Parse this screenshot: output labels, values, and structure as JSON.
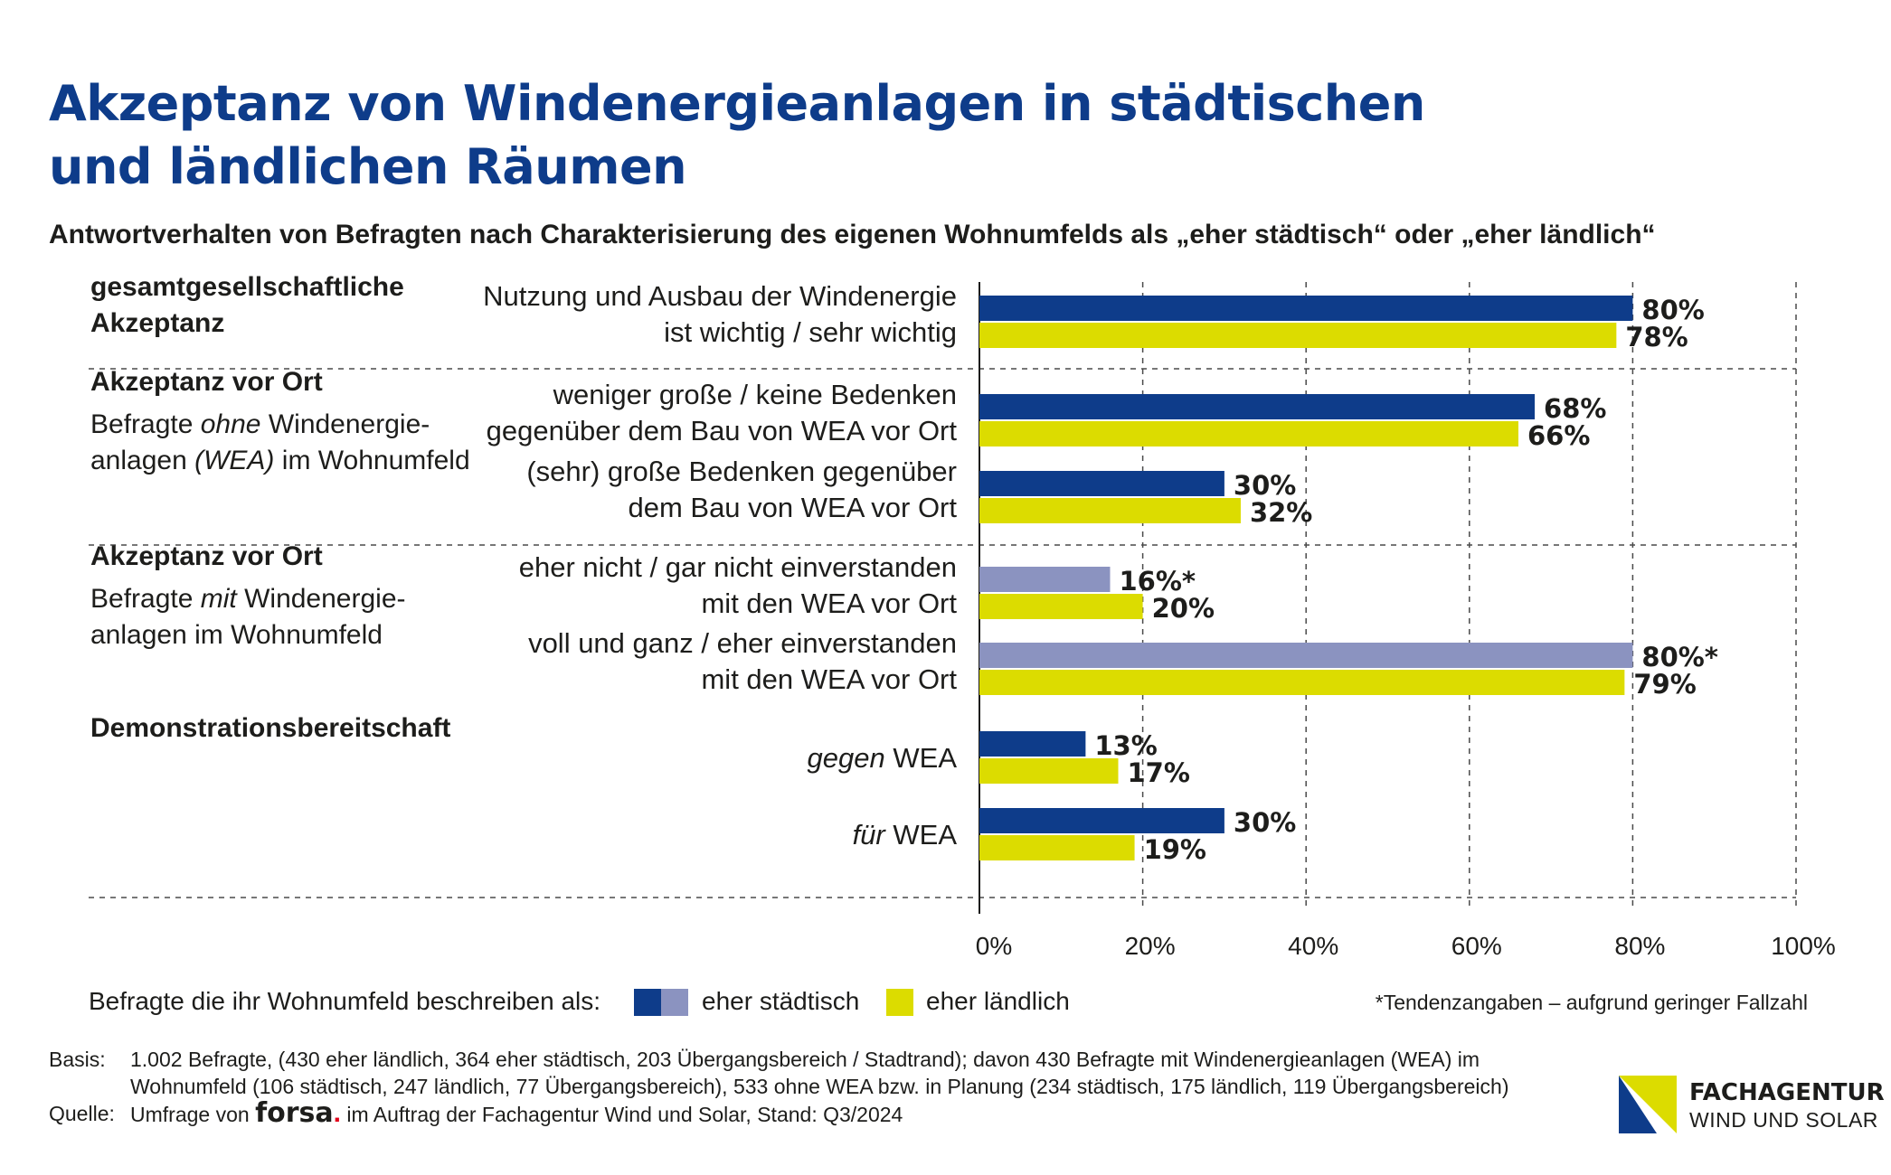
{
  "title": {
    "line1": "Akzeptanz von Windenergieanlagen in städtischen",
    "line2": "und ländlichen Räumen"
  },
  "subtitle": "Antwortverhalten von Befragten nach Charakterisierung des eigenen Wohnumfelds als „eher städtisch“ oder „eher ländlich“",
  "colors": {
    "staedtisch": "#0e3c8a",
    "staedtisch_tendenz": "#8b93c0",
    "laendlich": "#dcdc00",
    "title": "#0e3c8a"
  },
  "chart_data": {
    "type": "bar",
    "orientation": "horizontal",
    "xlim": [
      0,
      100
    ],
    "x_ticks": [
      "0%",
      "20%",
      "40%",
      "60%",
      "80%",
      "100%"
    ],
    "grid": true,
    "series_names": [
      "eher städtisch",
      "eher ländlich"
    ],
    "groups": [
      {
        "title": [
          "gesamtgesellschaftliche",
          "Akzeptanz"
        ],
        "description": [],
        "items": [
          {
            "label": [
              "Nutzung und Ausbau der Windenergie",
              "ist wichtig / sehr wichtig"
            ],
            "italic": false,
            "bars": [
              {
                "series": "eher städtisch",
                "value": 80,
                "label": "80%",
                "tendency": false
              },
              {
                "series": "eher ländlich",
                "value": 78,
                "label": "78%",
                "tendency": false
              }
            ]
          }
        ]
      },
      {
        "title": [
          "Akzeptanz vor Ort"
        ],
        "description": [
          [
            {
              "t": "Befragte "
            },
            {
              "t": "ohne",
              "i": true
            },
            {
              "t": " Windenergie-"
            }
          ],
          [
            {
              "t": "anlagen "
            },
            {
              "t": "(WEA)",
              "i": true
            },
            {
              "t": " im Wohnumfeld"
            }
          ]
        ],
        "items": [
          {
            "label": [
              "weniger große / keine Bedenken",
              "gegenüber dem Bau von WEA vor Ort"
            ],
            "italic": false,
            "bars": [
              {
                "series": "eher städtisch",
                "value": 68,
                "label": "68%",
                "tendency": false
              },
              {
                "series": "eher ländlich",
                "value": 66,
                "label": "66%",
                "tendency": false
              }
            ]
          },
          {
            "label": [
              "(sehr) große Bedenken gegenüber",
              "dem Bau von WEA vor Ort"
            ],
            "italic": false,
            "bars": [
              {
                "series": "eher städtisch",
                "value": 30,
                "label": "30%",
                "tendency": false
              },
              {
                "series": "eher ländlich",
                "value": 32,
                "label": "32%",
                "tendency": false
              }
            ]
          }
        ]
      },
      {
        "title": [
          "Akzeptanz vor Ort"
        ],
        "description": [
          [
            {
              "t": "Befragte "
            },
            {
              "t": "mit",
              "i": true
            },
            {
              "t": " Windenergie-"
            }
          ],
          [
            {
              "t": "anlagen im Wohnumfeld"
            }
          ]
        ],
        "items": [
          {
            "label": [
              "eher nicht / gar nicht einverstanden",
              "mit den WEA vor Ort"
            ],
            "italic": false,
            "bars": [
              {
                "series": "eher städtisch",
                "value": 16,
                "label": "16%*",
                "tendency": true
              },
              {
                "series": "eher ländlich",
                "value": 20,
                "label": "20%",
                "tendency": false
              }
            ]
          },
          {
            "label": [
              "voll und ganz / eher einverstanden",
              "mit den WEA vor Ort"
            ],
            "italic": false,
            "bars": [
              {
                "series": "eher städtisch",
                "value": 80,
                "label": "80%*",
                "tendency": true
              },
              {
                "series": "eher ländlich",
                "value": 79,
                "label": "79%",
                "tendency": false
              }
            ]
          }
        ]
      },
      {
        "title": [
          "Demonstrationsbereitschaft"
        ],
        "description": [],
        "items": [
          {
            "label": [
              [
                {
                  "t": "gegen",
                  "i": true
                },
                {
                  "t": " WEA"
                }
              ]
            ],
            "italic": "mixed",
            "bars": [
              {
                "series": "eher städtisch",
                "value": 13,
                "label": "13%",
                "tendency": false
              },
              {
                "series": "eher ländlich",
                "value": 17,
                "label": "17%",
                "tendency": false
              }
            ]
          },
          {
            "label": [
              [
                {
                  "t": "für",
                  "i": true
                },
                {
                  "t": " WEA"
                }
              ]
            ],
            "italic": "mixed",
            "bars": [
              {
                "series": "eher städtisch",
                "value": 30,
                "label": "30%",
                "tendency": false
              },
              {
                "series": "eher ländlich",
                "value": 19,
                "label": "19%",
                "tendency": false
              }
            ]
          }
        ]
      }
    ]
  },
  "legend": {
    "prefix": "Befragte die ihr Wohnumfeld beschreiben als:",
    "staedtisch": "eher städtisch",
    "laendlich": "eher ländlich"
  },
  "note": "*Tendenzangaben – aufgrund geringer Fallzahl",
  "footer": {
    "basis_key": "Basis:",
    "basis_line1": "1.002 Befragte, (430 eher ländlich, 364 eher städtisch, 203 Übergangsbereich / Stadtrand); davon 430 Befragte mit Windenergieanlagen (WEA) im",
    "basis_line2": "Wohnumfeld (106 städtisch, 247 ländlich, 77 Übergangsbereich), 533 ohne WEA bzw. in Planung (234 städtisch, 175 ländlich, 119 Übergangsbereich)",
    "quelle_key": "Quelle:",
    "quelle_prefix": "Umfrage von",
    "quelle_brand": "forsa",
    "quelle_dot": ".",
    "quelle_suffix": "im Auftrag der Fachagentur Wind und Solar, Stand: Q3/2024"
  },
  "logo": {
    "line1": "FACHAGENTUR",
    "line2": "WIND UND SOLAR"
  }
}
